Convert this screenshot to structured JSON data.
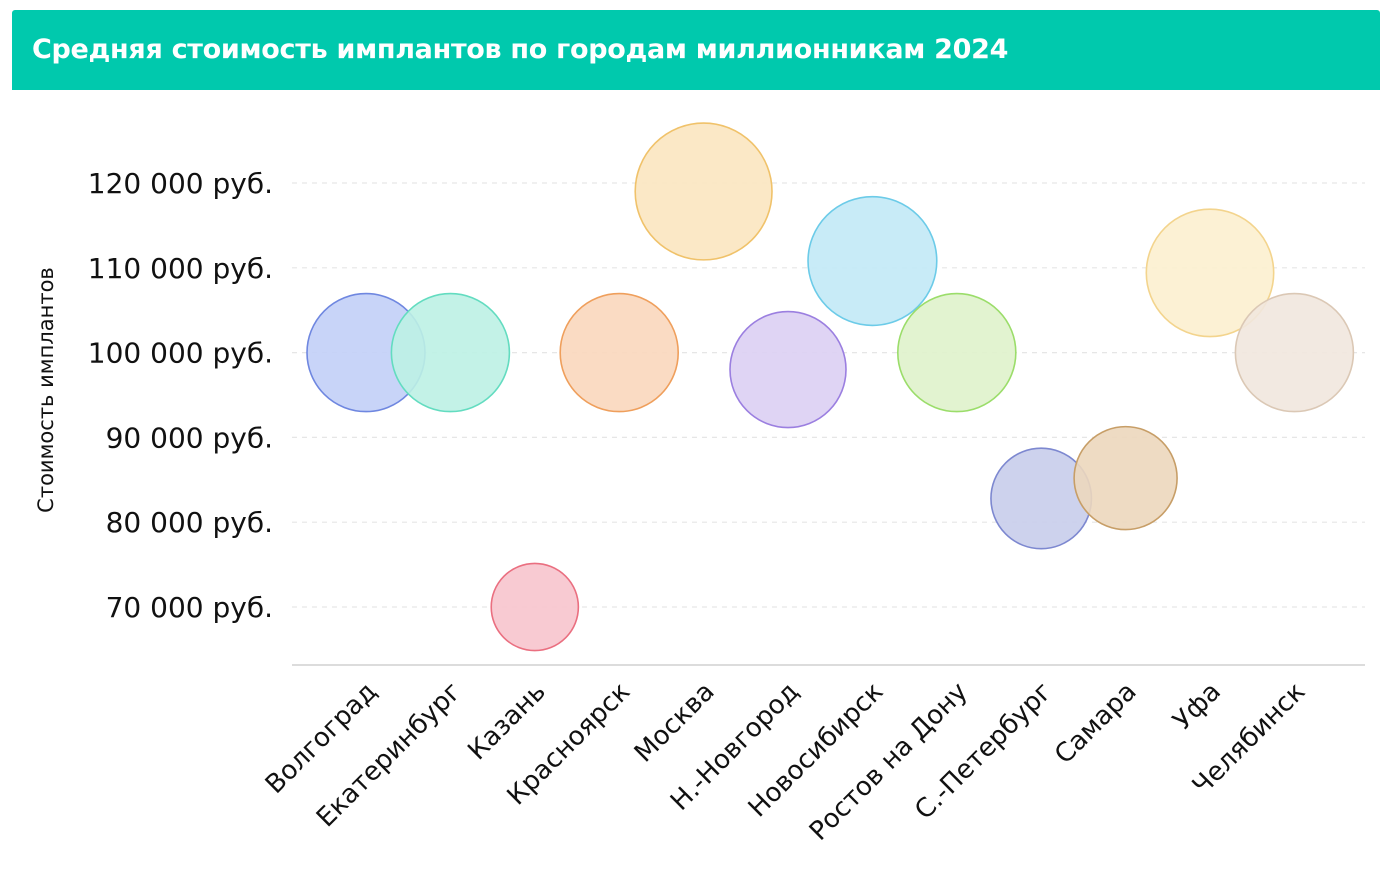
{
  "header": {
    "title": "Средняя стоимость имплантов по городам миллионникам 2024"
  },
  "colors": {
    "header_bg": "#00c9ad"
  },
  "chart_data": {
    "type": "scatter",
    "subtype": "bubble",
    "title": "Средняя стоимость имплантов по городам миллионникам 2024",
    "ylabel": "Стоимость имплантов",
    "xlabel": "",
    "ylim": [
      63000,
      126000
    ],
    "yticks": [
      70000,
      80000,
      90000,
      100000,
      110000,
      120000
    ],
    "ytick_labels": [
      "70 000 руб.",
      "80 000 руб.",
      "90 000 руб.",
      "100 000 руб.",
      "110 000 руб.",
      "120 000 руб."
    ],
    "grid": "horizontal-dashed",
    "legend": "none",
    "points": [
      {
        "category": "Волгоград",
        "y": 100000,
        "size": 100000,
        "fill": "#c2cff7",
        "stroke": "#6f87e0"
      },
      {
        "category": "Екатеринбург",
        "y": 100000,
        "size": 100000,
        "fill": "#bdf1e4",
        "stroke": "#63dcc0"
      },
      {
        "category": "Казань",
        "y": 70000,
        "size": 70000,
        "fill": "#f7c4cd",
        "stroke": "#ea6f80"
      },
      {
        "category": "Красноярск",
        "y": 100000,
        "size": 100000,
        "fill": "#f9d7bd",
        "stroke": "#ef9f5c"
      },
      {
        "category": "Москва",
        "y": 119000,
        "size": 119000,
        "fill": "#fbe5c0",
        "stroke": "#f0c26a"
      },
      {
        "category": "Н.-Новгород",
        "y": 98000,
        "size": 98000,
        "fill": "#dccff3",
        "stroke": "#9b7fe0"
      },
      {
        "category": "Новосибирск",
        "y": 110800,
        "size": 110800,
        "fill": "#c2e9f6",
        "stroke": "#6ccbe8"
      },
      {
        "category": "Ростов на Дону",
        "y": 100000,
        "size": 100000,
        "fill": "#dff2cb",
        "stroke": "#9bdd6a"
      },
      {
        "category": "С.-Петербург",
        "y": 82800,
        "size": 82800,
        "fill": "#c8cdeb",
        "stroke": "#7d88d0"
      },
      {
        "category": "Самара",
        "y": 85200,
        "size": 85200,
        "fill": "#ecd7bd",
        "stroke": "#c79e67"
      },
      {
        "category": "Уфа",
        "y": 109400,
        "size": 109400,
        "fill": "#fcefcf",
        "stroke": "#f3d48d"
      },
      {
        "category": "Челябинск",
        "y": 100000,
        "size": 100000,
        "fill": "#f1e7de",
        "stroke": "#dbc8b5"
      }
    ]
  }
}
